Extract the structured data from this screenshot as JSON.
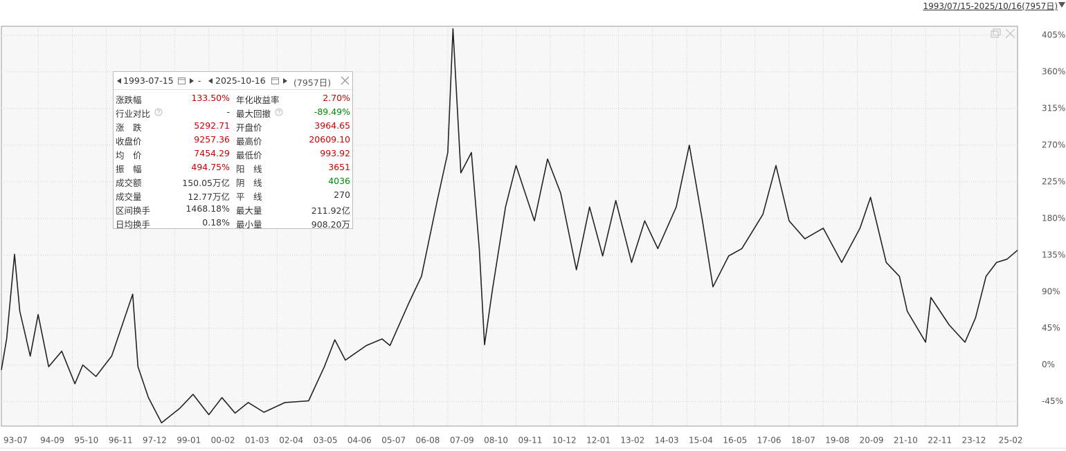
{
  "range_text": "1993/07/15-2025/10/16(7957日)",
  "chart_data": {
    "type": "line",
    "color": "#222222",
    "grid": true,
    "x": [
      "93-07",
      "93-09",
      "93-12",
      "94-02",
      "94-06",
      "94-09",
      "95-01",
      "95-06",
      "95-11",
      "96-02",
      "96-07",
      "97-01",
      "97-09",
      "97-11",
      "98-03",
      "98-08",
      "99-03",
      "99-08",
      "00-02",
      "00-07",
      "00-12",
      "01-05",
      "01-11",
      "02-07",
      "03-04",
      "03-10",
      "04-02",
      "04-06",
      "05-02",
      "05-08",
      "05-11",
      "06-06",
      "06-11",
      "07-05",
      "07-09",
      "07-11",
      "08-02",
      "08-06",
      "08-09",
      "08-11",
      "09-02",
      "09-07",
      "09-11",
      "10-06",
      "10-11",
      "11-04",
      "11-10",
      "12-03",
      "12-08",
      "13-01",
      "13-07",
      "13-12",
      "14-05",
      "14-12",
      "15-05",
      "15-10",
      "16-02",
      "16-08",
      "17-01",
      "17-09",
      "18-02",
      "18-07",
      "19-01",
      "19-08",
      "20-03",
      "20-10",
      "21-02",
      "21-08",
      "22-01",
      "22-04",
      "22-11",
      "23-01",
      "23-08",
      "24-02",
      "24-06",
      "24-10",
      "25-02",
      "25-06",
      "25-10"
    ],
    "values": [
      -6,
      32,
      136,
      66,
      11,
      62,
      -2,
      17,
      -23,
      0,
      -14,
      11,
      87,
      -2,
      -40,
      -71,
      -53,
      -36,
      -61,
      -40,
      -59,
      -46,
      -58,
      -46,
      -44,
      -2,
      31,
      6,
      24,
      32,
      24,
      75,
      109,
      202,
      261,
      413,
      236,
      261,
      143,
      25,
      92,
      194,
      245,
      177,
      253,
      211,
      117,
      194,
      134,
      202,
      126,
      177,
      143,
      194,
      270,
      177,
      96,
      134,
      143,
      185,
      245,
      177,
      155,
      168,
      126,
      168,
      206,
      126,
      109,
      66,
      28,
      83,
      49,
      28,
      58,
      109,
      126,
      130,
      141
    ],
    "xlim": [
      "93-07",
      "25-10"
    ],
    "xticks": [
      "93-07",
      "94-09",
      "95-10",
      "96-11",
      "97-12",
      "99-01",
      "00-02",
      "01-03",
      "02-04",
      "03-05",
      "04-06",
      "05-07",
      "06-08",
      "07-09",
      "08-10",
      "09-11",
      "10-12",
      "12-01",
      "13-02",
      "14-03",
      "15-04",
      "16-05",
      "17-06",
      "18-07",
      "19-08",
      "20-09",
      "21-10",
      "22-11",
      "23-12",
      "25-02"
    ],
    "ylim": [
      -75,
      416
    ],
    "yticks": [
      {
        "value": -45,
        "label": "-45%"
      },
      {
        "value": 0,
        "label": "0%"
      },
      {
        "value": 45,
        "label": "45%"
      },
      {
        "value": 90,
        "label": "90%"
      },
      {
        "value": 135,
        "label": "135%"
      },
      {
        "value": 180,
        "label": "180%"
      },
      {
        "value": 225,
        "label": "225%"
      },
      {
        "value": 270,
        "label": "270%"
      },
      {
        "value": 315,
        "label": "315%"
      },
      {
        "value": 360,
        "label": "360%"
      },
      {
        "value": 405,
        "label": "405%"
      }
    ]
  },
  "panel": {
    "start": "1993-07-15",
    "separator": "-",
    "end": "2025-10-16",
    "days": "(7957日)",
    "stats": [
      {
        "label": "涨跌幅",
        "value": "133.50%",
        "color": "#cc0000"
      },
      {
        "label": "年化收益率",
        "value": "2.70%",
        "color": "#cc0000"
      },
      {
        "label": "行业对比",
        "value": "-",
        "color": "#333333"
      },
      {
        "label": "最大回撤",
        "value": "-89.49%",
        "color": "#008800"
      },
      {
        "label": "涨　跌",
        "value": "5292.71",
        "color": "#cc0000"
      },
      {
        "label": "开盘价",
        "value": "3964.65",
        "color": "#cc0000"
      },
      {
        "label": "收盘价",
        "value": "9257.36",
        "color": "#cc0000"
      },
      {
        "label": "最高价",
        "value": "20609.10",
        "color": "#cc0000"
      },
      {
        "label": "均　价",
        "value": "7454.29",
        "color": "#cc0000"
      },
      {
        "label": "最低价",
        "value": "993.92",
        "color": "#cc0000"
      },
      {
        "label": "振　幅",
        "value": "494.75%",
        "color": "#cc0000"
      },
      {
        "label": "阳　线",
        "value": "3651",
        "color": "#cc0000"
      },
      {
        "label": "成交额",
        "value": "150.05万亿",
        "color": "#333333"
      },
      {
        "label": "阴　线",
        "value": "4036",
        "color": "#008800"
      },
      {
        "label": "成交量",
        "value": "12.77万亿",
        "color": "#333333"
      },
      {
        "label": "平　线",
        "value": "270",
        "color": "#333333"
      },
      {
        "label": "区间换手",
        "value": "1468.18%",
        "color": "#333333"
      },
      {
        "label": "最大量",
        "value": "211.92亿",
        "color": "#333333"
      },
      {
        "label": "日均换手",
        "value": "0.18%",
        "color": "#333333"
      },
      {
        "label": "最小量",
        "value": "908.20万",
        "color": "#333333"
      }
    ]
  }
}
